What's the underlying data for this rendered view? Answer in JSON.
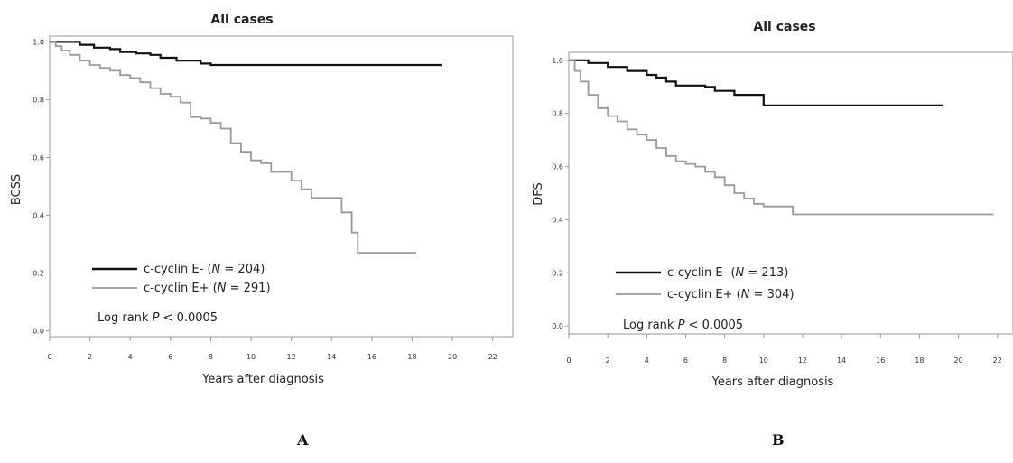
{
  "colors": {
    "negative": "#111111",
    "positive": "#9a9a9a",
    "frame": "#9a9a9a"
  },
  "panels": [
    {
      "letter": "A",
      "pvalue_prefix": "Log rank ",
      "pvalue_italic": "P",
      "pvalue_suffix": " < 0.0005"
    },
    {
      "letter": "B",
      "pvalue_prefix": "Log rank ",
      "pvalue_italic": "P",
      "pvalue_suffix": " < 0.0005"
    }
  ],
  "chart_data": [
    {
      "type": "line",
      "title": "All cases",
      "xlabel": "Years after diagnosis",
      "ylabel": "BCSS",
      "xlim": [
        0,
        23
      ],
      "ylim": [
        -0.02,
        1.02
      ],
      "x_ticks": [
        "0",
        "2",
        "4",
        "6",
        "8",
        "10",
        "12",
        "14",
        "16",
        "18",
        "20",
        "22"
      ],
      "y_ticks": [
        "0.0",
        "0.2",
        "0.4",
        "0.6",
        "0.8",
        "1.0"
      ],
      "grid": false,
      "legend_position": "bottom-left",
      "series": [
        {
          "name_prefix": "c-cyclin E- (",
          "name_italic": "N",
          "name_suffix": " = 204)",
          "color": "#111111",
          "points": [
            [
              0,
              1.0
            ],
            [
              1.2,
              1.0
            ],
            [
              1.5,
              0.99
            ],
            [
              2.0,
              0.99
            ],
            [
              2.2,
              0.98
            ],
            [
              3.0,
              0.975
            ],
            [
              3.5,
              0.965
            ],
            [
              4.3,
              0.96
            ],
            [
              5.0,
              0.955
            ],
            [
              5.5,
              0.945
            ],
            [
              6.3,
              0.935
            ],
            [
              7.5,
              0.925
            ],
            [
              8.0,
              0.92
            ],
            [
              19.5,
              0.92
            ]
          ]
        },
        {
          "name_prefix": "c-cyclin E+ (",
          "name_italic": "N",
          "name_suffix": " = 291)",
          "color": "#9a9a9a",
          "points": [
            [
              0,
              1.0
            ],
            [
              0.3,
              0.985
            ],
            [
              0.6,
              0.97
            ],
            [
              1.0,
              0.955
            ],
            [
              1.5,
              0.935
            ],
            [
              2.0,
              0.92
            ],
            [
              2.5,
              0.91
            ],
            [
              3.0,
              0.9
            ],
            [
              3.5,
              0.885
            ],
            [
              4.0,
              0.875
            ],
            [
              4.5,
              0.86
            ],
            [
              5.0,
              0.84
            ],
            [
              5.5,
              0.82
            ],
            [
              6.0,
              0.81
            ],
            [
              6.5,
              0.79
            ],
            [
              7.0,
              0.74
            ],
            [
              7.5,
              0.735
            ],
            [
              8.0,
              0.72
            ],
            [
              8.5,
              0.7
            ],
            [
              9.0,
              0.65
            ],
            [
              9.5,
              0.62
            ],
            [
              10.0,
              0.59
            ],
            [
              10.5,
              0.58
            ],
            [
              11.0,
              0.55
            ],
            [
              12.0,
              0.52
            ],
            [
              12.5,
              0.49
            ],
            [
              13.0,
              0.46
            ],
            [
              14.0,
              0.46
            ],
            [
              14.5,
              0.41
            ],
            [
              15.0,
              0.34
            ],
            [
              15.3,
              0.27
            ],
            [
              18.2,
              0.27
            ]
          ]
        }
      ]
    },
    {
      "type": "line",
      "title": "All cases",
      "xlabel": "Years after diagnosis",
      "ylabel": "DFS",
      "xlim": [
        0,
        22.8
      ],
      "ylim": [
        -0.03,
        1.03
      ],
      "x_ticks": [
        "0",
        "2",
        "4",
        "6",
        "8",
        "10",
        "12",
        "14",
        "16",
        "18",
        "20",
        "22"
      ],
      "y_ticks": [
        "0.0",
        "0.2",
        "0.4",
        "0.6",
        "0.8",
        "1.0"
      ],
      "grid": false,
      "legend_position": "bottom-left",
      "series": [
        {
          "name_prefix": "c-cyclin E- (",
          "name_italic": "N",
          "name_suffix": " = 213)",
          "color": "#111111",
          "points": [
            [
              0,
              1.0
            ],
            [
              1.0,
              0.99
            ],
            [
              2.0,
              0.975
            ],
            [
              3.0,
              0.96
            ],
            [
              4.0,
              0.945
            ],
            [
              4.5,
              0.935
            ],
            [
              5.0,
              0.92
            ],
            [
              5.5,
              0.905
            ],
            [
              7.0,
              0.9
            ],
            [
              7.5,
              0.885
            ],
            [
              8.5,
              0.87
            ],
            [
              10.0,
              0.83
            ],
            [
              19.2,
              0.83
            ]
          ]
        },
        {
          "name_prefix": "c-cyclin E+ (",
          "name_italic": "N",
          "name_suffix": " = 304)",
          "color": "#9a9a9a",
          "points": [
            [
              0,
              1.0
            ],
            [
              0.3,
              0.96
            ],
            [
              0.6,
              0.92
            ],
            [
              1.0,
              0.87
            ],
            [
              1.5,
              0.82
            ],
            [
              2.0,
              0.79
            ],
            [
              2.5,
              0.77
            ],
            [
              3.0,
              0.74
            ],
            [
              3.5,
              0.72
            ],
            [
              4.0,
              0.7
            ],
            [
              4.5,
              0.67
            ],
            [
              5.0,
              0.64
            ],
            [
              5.5,
              0.62
            ],
            [
              6.0,
              0.61
            ],
            [
              6.5,
              0.6
            ],
            [
              7.0,
              0.58
            ],
            [
              7.5,
              0.56
            ],
            [
              8.0,
              0.53
            ],
            [
              8.5,
              0.5
            ],
            [
              9.0,
              0.48
            ],
            [
              9.5,
              0.46
            ],
            [
              10.0,
              0.45
            ],
            [
              11.5,
              0.42
            ],
            [
              21.8,
              0.42
            ]
          ]
        }
      ]
    }
  ]
}
